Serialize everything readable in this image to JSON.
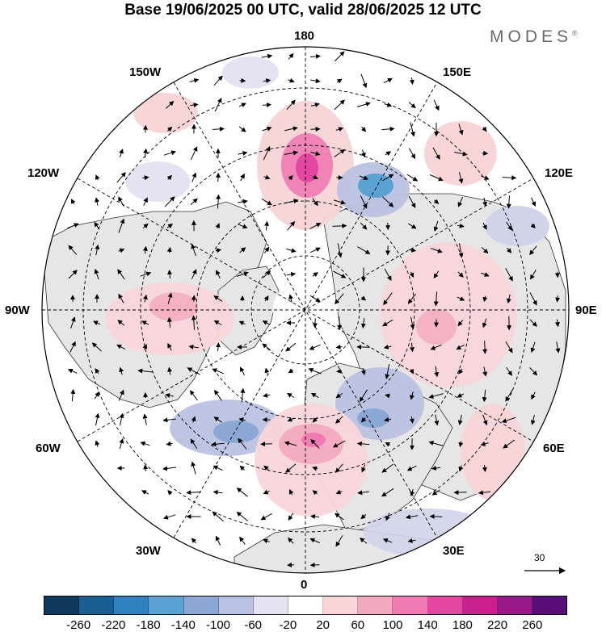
{
  "header": {
    "title": "Base 19/06/2025 00 UTC, valid 28/06/2025 12 UTC",
    "brand": "MODES",
    "brand_mark": "®"
  },
  "map": {
    "projection": "north-polar-stereographic",
    "boundary": "circle",
    "graticule": "dashed",
    "longitude_labels": {
      "top": "180",
      "top_right": "150E",
      "upper_right": "120E",
      "right": "90E",
      "lower_right": "60E",
      "bottom_right": "30E",
      "bottom": "0",
      "bottom_left": "30W",
      "lower_left": "60W",
      "left": "90W",
      "upper_left": "120W",
      "top_left": "150W"
    },
    "field": "height anomaly (shaded) with wind vectors",
    "reference_vector_label": "30",
    "colors": {
      "land": "#e6e6e6",
      "neg_strong": "#4a7fc0",
      "neg_weak": "#d0d4e8",
      "pos_weak": "#f6d4d4",
      "pos_strong": "#e5509b"
    }
  },
  "colorbar": {
    "ticks": [
      "-260",
      "-220",
      "-180",
      "-140",
      "-100",
      "-60",
      "-20",
      "20",
      "60",
      "100",
      "140",
      "180",
      "220",
      "260"
    ],
    "colors": [
      "#0d3a5c",
      "#1a5f92",
      "#2e82bd",
      "#5aa2d2",
      "#8aa8d3",
      "#b9c2e0",
      "#e5e3f2",
      "#ffffff",
      "#f8d6d8",
      "#f3a9bd",
      "#ef7bb2",
      "#e3479f",
      "#c8208c",
      "#951a8a",
      "#5a0f78"
    ]
  }
}
